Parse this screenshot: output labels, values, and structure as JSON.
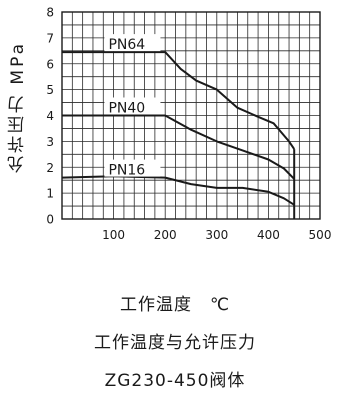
{
  "chart_data": {
    "type": "line",
    "ylabel": "允许压力 MPa",
    "xlabel": "工作温度 ℃",
    "xlim": [
      0,
      500
    ],
    "ylim": [
      0,
      8
    ],
    "x_ticks": [
      100,
      200,
      300,
      400,
      500
    ],
    "y_ticks": [
      0,
      1,
      2,
      3,
      4,
      5,
      6,
      7,
      8
    ],
    "grid": true,
    "series": [
      {
        "name": "PN64",
        "x": [
          0,
          50,
          100,
          150,
          200,
          230,
          260,
          300,
          340,
          380,
          410,
          440,
          450
        ],
        "y": [
          6.45,
          6.45,
          6.45,
          6.45,
          6.45,
          5.8,
          5.35,
          5.0,
          4.3,
          3.95,
          3.7,
          3.0,
          2.7
        ]
      },
      {
        "name": "PN40",
        "x": [
          0,
          50,
          100,
          150,
          200,
          250,
          300,
          350,
          400,
          430,
          450
        ],
        "y": [
          4.0,
          4.0,
          4.0,
          4.0,
          4.0,
          3.45,
          3.0,
          2.65,
          2.3,
          1.95,
          1.55
        ]
      },
      {
        "name": "PN16",
        "x": [
          0,
          100,
          200,
          250,
          300,
          350,
          400,
          430,
          450
        ],
        "y": [
          1.6,
          1.65,
          1.6,
          1.35,
          1.2,
          1.2,
          1.05,
          0.8,
          0.55
        ]
      }
    ]
  },
  "captions": {
    "xlabel": "工作温度　℃",
    "title": "工作温度与允许压力",
    "subtitle": "ZG230-450阀体"
  }
}
